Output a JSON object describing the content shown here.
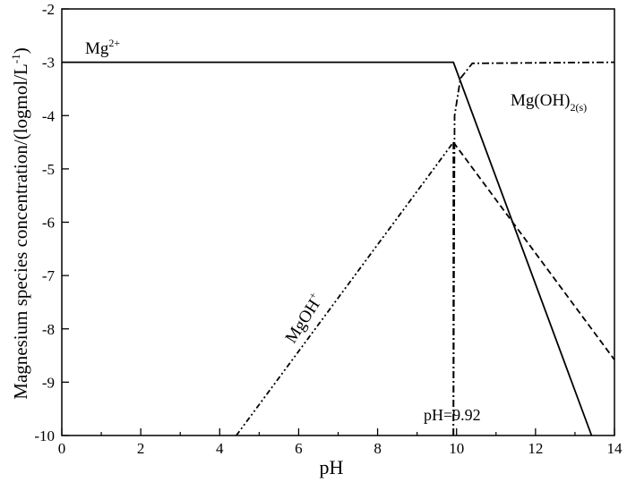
{
  "chart_data": {
    "type": "line",
    "x_label": "pH",
    "y_label": {
      "base": "Magnesium species concentration/(logmol/L",
      "sup": "-1",
      "end": ")"
    },
    "xlim": [
      0,
      14
    ],
    "ylim": [
      -10,
      -2
    ],
    "xticks": [
      0,
      2,
      4,
      6,
      8,
      10,
      12,
      14
    ],
    "yticks": [
      -10,
      -9,
      -8,
      -7,
      -6,
      -5,
      -4,
      -3,
      -2
    ],
    "series": [
      {
        "color": "#000000",
        "style": "solid",
        "x": [
          0,
          9.92,
          13.42
        ],
        "values": [
          -3,
          -3,
          -10
        ]
      },
      {
        "color": "#000000",
        "style": "dashdotdot",
        "x": [
          4.42,
          9.92
        ],
        "values": [
          -10,
          -4.5
        ]
      },
      {
        "color": "#000000",
        "style": "dashed",
        "x": [
          9.92,
          14
        ],
        "values": [
          -4.5,
          -8.58
        ]
      },
      {
        "color": "#000000",
        "style": "dashdot",
        "x": [
          9.92,
          9.95,
          10.1,
          10.4,
          14
        ],
        "values": [
          -10,
          -4,
          -3.3,
          -3.02,
          -3
        ]
      },
      {
        "color": "#000000",
        "style": "dashdot",
        "x": [
          9.92,
          9.92
        ],
        "values": [
          -10,
          -4.5
        ]
      }
    ],
    "annotations": [
      {
        "base": "Mg",
        "sup": "2+"
      },
      {
        "base": "Mg(OH)",
        "sub": "2(s)"
      },
      {
        "base": "MgOH",
        "sup": "+"
      },
      {
        "base": "pH=9.92"
      }
    ]
  }
}
